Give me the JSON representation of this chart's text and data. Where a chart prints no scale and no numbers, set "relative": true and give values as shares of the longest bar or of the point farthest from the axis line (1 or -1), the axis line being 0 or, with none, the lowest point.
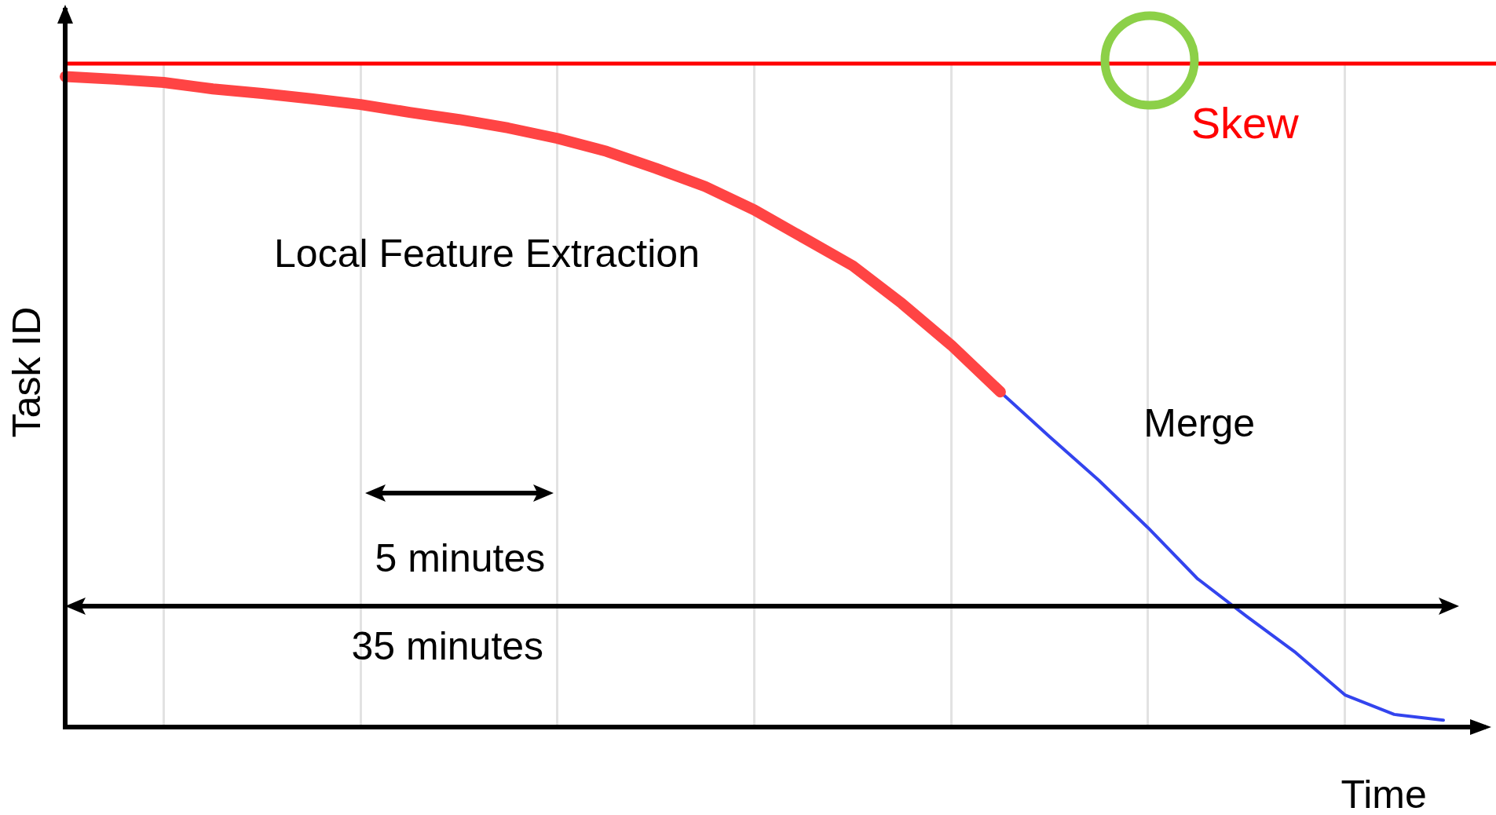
{
  "chart_data": {
    "type": "line",
    "relative": true,
    "xlabel": "Time",
    "ylabel": "Task ID",
    "grid": "x",
    "marker": "none",
    "categories": [
      null,
      null,
      null,
      null,
      null,
      null,
      null,
      null,
      null,
      null,
      null,
      null,
      null,
      null,
      null,
      null,
      null,
      null,
      null,
      null,
      null,
      null,
      null,
      null,
      null,
      null,
      null,
      null,
      null
    ],
    "series": [
      {
        "name": "Local Feature Extraction",
        "color": "#ff4444",
        "values": [
          1,
          0.996,
          0.991,
          0.981,
          0.974,
          0.966,
          0.957,
          0.945,
          0.934,
          0.921,
          0.905,
          0.885,
          0.859,
          0.831,
          0.795,
          0.752,
          0.709,
          0.651,
          0.587,
          0.515,
          null,
          null,
          null,
          null,
          null,
          null,
          null,
          null,
          null
        ]
      },
      {
        "name": "Merge",
        "color": "#3344ee",
        "values": [
          null,
          null,
          null,
          null,
          null,
          null,
          null,
          null,
          null,
          null,
          null,
          null,
          null,
          null,
          null,
          null,
          null,
          null,
          null,
          0.515,
          0.446,
          0.379,
          0.306,
          0.228,
          0.17,
          0.114,
          0.049,
          0.019,
          0.01
        ]
      }
    ],
    "ref_lines": [
      {
        "axis": "y",
        "value": 1.02,
        "label": "Skew",
        "color": "#ff0000"
      }
    ],
    "annotations": [
      "5 minutes",
      "35 minutes"
    ]
  }
}
